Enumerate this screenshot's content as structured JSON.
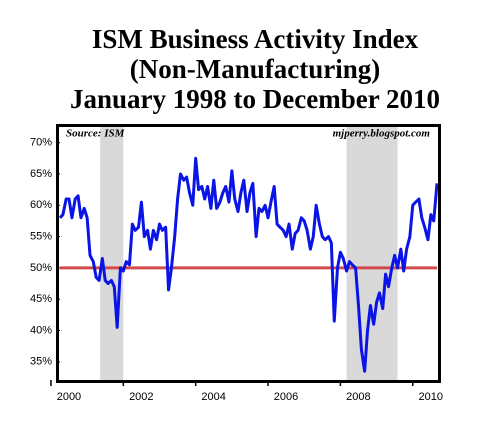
{
  "chart_data": {
    "type": "line",
    "title": [
      "ISM Business Activity Index",
      "(Non-Manufacturing)",
      "January 1998 to December 2010"
    ],
    "source": "Source: ISM",
    "credit": "mjperry.blogspot.com",
    "x": [
      2000.25,
      2000.33,
      2000.42,
      2000.5,
      2000.58,
      2000.67,
      2000.75,
      2000.83,
      2000.92,
      2001,
      2001.08,
      2001.17,
      2001.25,
      2001.33,
      2001.42,
      2001.5,
      2001.58,
      2001.67,
      2001.75,
      2001.83,
      2001.92,
      2002,
      2002.08,
      2002.17,
      2002.25,
      2002.33,
      2002.42,
      2002.5,
      2002.58,
      2002.67,
      2002.75,
      2002.83,
      2002.92,
      2003,
      2003.08,
      2003.17,
      2003.25,
      2003.33,
      2003.42,
      2003.5,
      2003.58,
      2003.67,
      2003.75,
      2003.83,
      2003.92,
      2004,
      2004.08,
      2004.17,
      2004.25,
      2004.33,
      2004.42,
      2004.5,
      2004.58,
      2004.67,
      2004.75,
      2004.83,
      2004.92,
      2005,
      2005.08,
      2005.17,
      2005.25,
      2005.33,
      2005.42,
      2005.5,
      2005.58,
      2005.67,
      2005.75,
      2005.83,
      2005.92,
      2006,
      2006.08,
      2006.17,
      2006.25,
      2006.33,
      2006.42,
      2006.5,
      2006.58,
      2006.67,
      2006.75,
      2006.83,
      2006.92,
      2007,
      2007.08,
      2007.17,
      2007.25,
      2007.33,
      2007.42,
      2007.5,
      2007.58,
      2007.67,
      2007.75,
      2007.83,
      2007.92,
      2008,
      2008.08,
      2008.17,
      2008.25,
      2008.33,
      2008.42,
      2008.5,
      2008.58,
      2008.67,
      2008.75,
      2008.83,
      2008.92,
      2009,
      2009.08,
      2009.17,
      2009.25,
      2009.33,
      2009.42,
      2009.5,
      2009.58,
      2009.67,
      2009.75,
      2009.83,
      2009.92,
      2010,
      2010.08,
      2010.17,
      2010.25,
      2010.33,
      2010.42,
      2010.5,
      2010.58,
      2010.67
    ],
    "series": [
      {
        "color": "#0a14e6",
        "values": [
          58,
          58.5,
          61,
          61,
          58,
          61,
          61.5,
          58,
          59.5,
          58,
          52,
          51,
          48.5,
          48,
          51.5,
          48,
          47.5,
          48,
          47,
          40.5,
          50,
          49.5,
          51,
          50.5,
          57,
          56,
          56.5,
          60.5,
          55,
          56,
          53,
          56,
          54.5,
          57,
          56,
          56.5,
          46.5,
          50,
          55,
          61,
          65,
          64,
          64.5,
          62,
          60,
          67.5,
          62.5,
          63,
          61,
          63,
          59.5,
          64,
          59.5,
          60.5,
          62,
          63,
          60.5,
          65.5,
          61,
          59,
          62,
          64,
          59,
          62,
          63.5,
          55,
          59.5,
          59,
          60,
          58,
          60.5,
          63,
          57,
          56.5,
          56,
          55,
          57,
          53,
          55.5,
          56,
          58,
          57.5,
          56,
          53,
          55,
          60,
          57,
          55,
          54.5,
          55,
          54,
          41.5,
          50,
          52.5,
          51.5,
          49.5,
          51,
          50.5,
          50,
          44,
          37,
          33.5,
          40,
          44,
          41,
          44.5,
          46,
          43.5,
          49,
          47,
          50,
          52,
          50,
          53,
          49.5,
          53,
          55,
          60,
          60.5,
          61,
          58,
          56.5,
          54.5,
          58.5,
          57.5,
          63.5
        ]
      }
    ],
    "reference_line": {
      "value": 50,
      "color": "#d24b4b"
    },
    "shaded_periods": [
      [
        2001.36,
        2002.0
      ],
      [
        2008.17,
        2009.58
      ]
    ],
    "shade_color": "#d9d9d9",
    "xlim": [
      2000.25,
      2010.67
    ],
    "xticks": [
      2000,
      2002,
      2004,
      2006,
      2008,
      2010
    ],
    "ylim": [
      32.1,
      72.5
    ],
    "yticks": [
      {
        "value": 35,
        "label": "35%"
      },
      {
        "value": 40,
        "label": "40%"
      },
      {
        "value": 45,
        "label": "45%"
      },
      {
        "value": 50,
        "label": "50%"
      },
      {
        "value": 55,
        "label": "55%"
      },
      {
        "value": 60,
        "label": "60%"
      },
      {
        "value": 65,
        "label": "65%"
      },
      {
        "value": 70,
        "label": "70%"
      }
    ]
  }
}
